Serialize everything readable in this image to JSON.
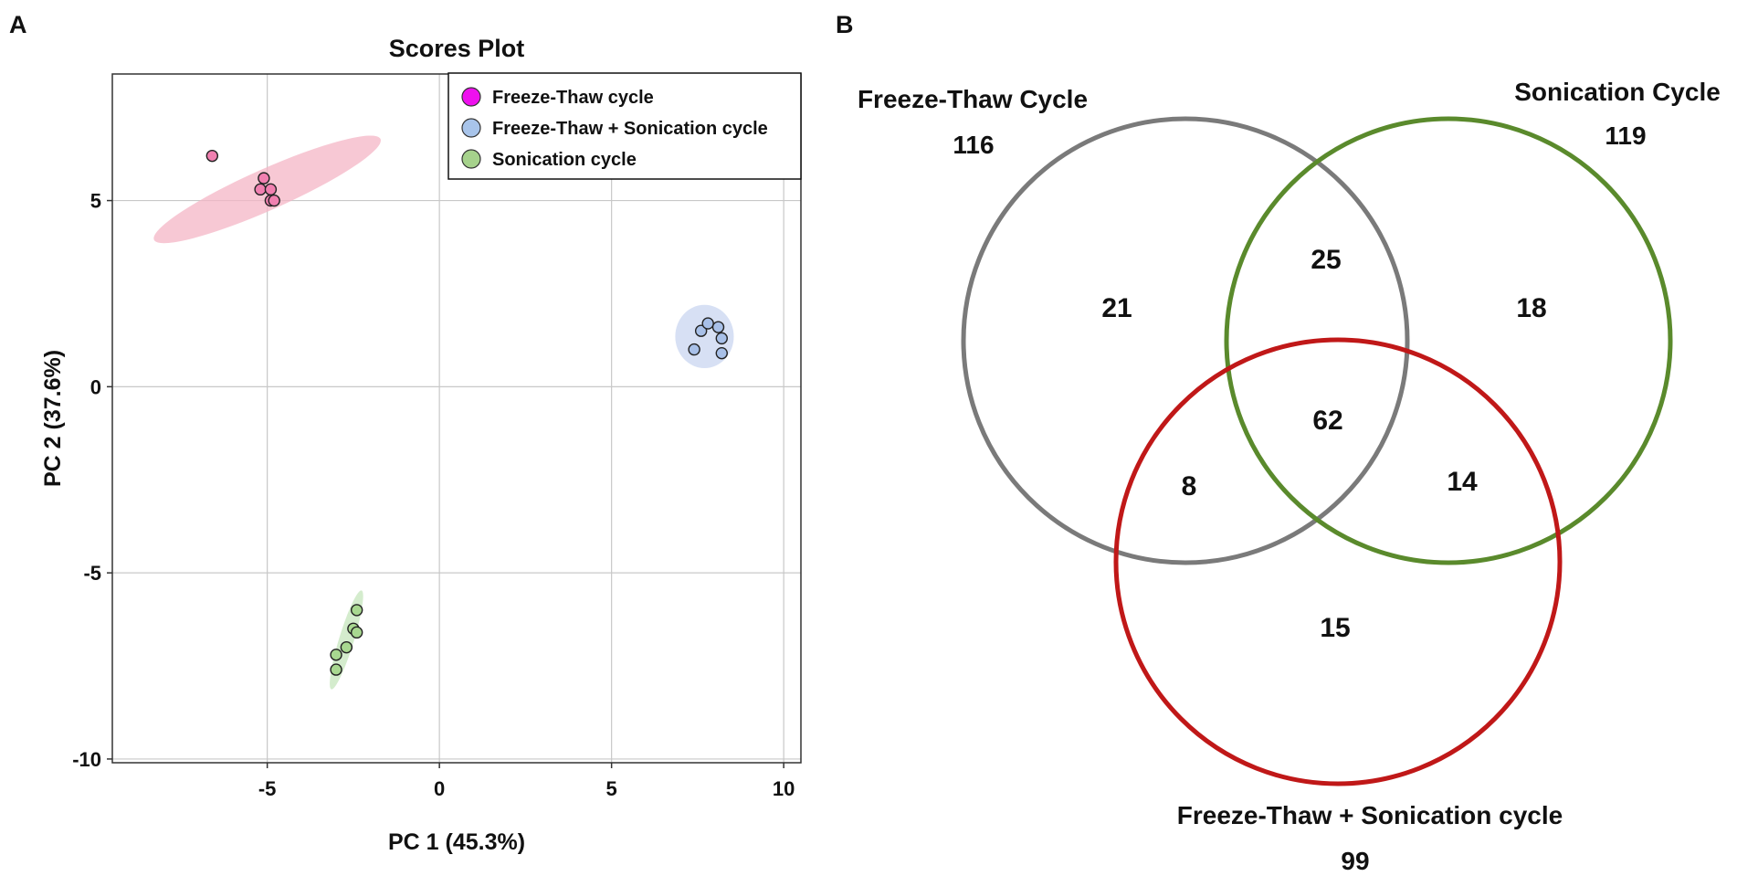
{
  "panels": {
    "a": "A",
    "b": "B"
  },
  "chart_data": [
    {
      "type": "scatter",
      "title": "Scores Plot",
      "xlabel": "PC 1 (45.3%)",
      "ylabel": "PC 2 (37.6%)",
      "xlim": [
        -9.5,
        10.5
      ],
      "ylim": [
        -10.1,
        8.4
      ],
      "xticks": [
        -5,
        0,
        5,
        10
      ],
      "yticks": [
        5,
        0,
        -5,
        -10
      ],
      "xtick_labels": [
        "-5",
        "0",
        "5",
        "10"
      ],
      "ytick_labels": [
        "5",
        "0",
        "-5",
        "-10"
      ],
      "grid": true,
      "legend_position": "top-right",
      "series": [
        {
          "name": "Freeze-Thaw cycle",
          "color": "#f080b0",
          "legend_color": "#ee10ee",
          "ellipse_color": "#f4b6c6",
          "ellipse": {
            "cx": -5.0,
            "cy": 5.3,
            "rx": 3.6,
            "ry": 0.55,
            "angle_deg": -24
          },
          "points": [
            [
              -6.6,
              6.2
            ],
            [
              -5.1,
              5.6
            ],
            [
              -5.2,
              5.3
            ],
            [
              -4.9,
              5.3
            ],
            [
              -4.9,
              5.0
            ],
            [
              -4.8,
              5.0
            ]
          ]
        },
        {
          "name": "Freeze-Thaw + Sonication cycle",
          "color": "#a8c0e8",
          "legend_color": "#a8c4ea",
          "ellipse_color": "#c9d6f0",
          "ellipse": {
            "cx": 7.7,
            "cy": 1.35,
            "rx": 0.85,
            "ry": 0.85,
            "angle_deg": 0
          },
          "points": [
            [
              7.6,
              1.5
            ],
            [
              7.8,
              1.7
            ],
            [
              8.1,
              1.6
            ],
            [
              7.4,
              1.0
            ],
            [
              8.2,
              1.3
            ],
            [
              8.2,
              0.9
            ]
          ]
        },
        {
          "name": "Sonication cycle",
          "color": "#a8d890",
          "legend_color": "#a6d28c",
          "ellipse_color": "#c6e6bc",
          "ellipse": {
            "cx": -2.7,
            "cy": -6.8,
            "rx": 1.5,
            "ry": 0.2,
            "angle_deg": -73
          },
          "points": [
            [
              -2.4,
              -6.0
            ],
            [
              -2.5,
              -6.5
            ],
            [
              -2.4,
              -6.6
            ],
            [
              -2.7,
              -7.0
            ],
            [
              -3.0,
              -7.2
            ],
            [
              -3.0,
              -7.6
            ]
          ]
        }
      ]
    },
    {
      "type": "venn",
      "sets": [
        {
          "name": "Freeze-Thaw Cycle",
          "total": "116",
          "color": "#7a7a7a"
        },
        {
          "name": "Sonication Cycle",
          "total": "119",
          "color": "#5a8a2c"
        },
        {
          "name": "Freeze-Thaw + Sonication cycle",
          "total": "99",
          "color": "#c01818"
        }
      ],
      "regions": {
        "freeze_thaw_only": "21",
        "freeze_thaw_and_sonication": "25",
        "sonication_only": "18",
        "all_three": "62",
        "freeze_thaw_and_combined": "8",
        "sonication_and_combined": "14",
        "combined_only": "15"
      }
    }
  ]
}
